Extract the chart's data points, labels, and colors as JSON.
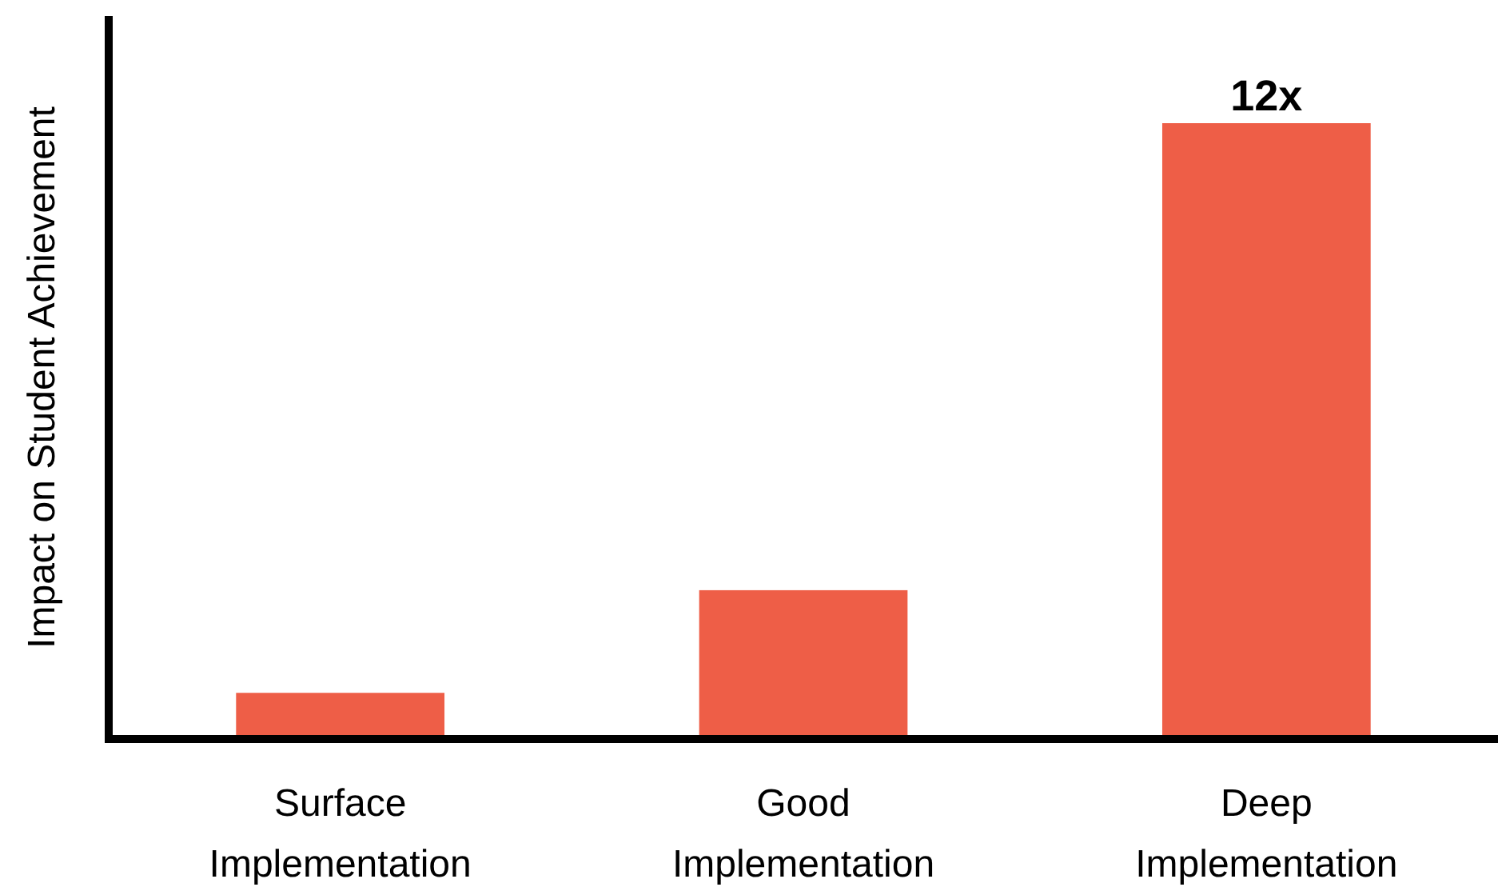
{
  "chart_data": {
    "type": "bar",
    "ylabel": "Impact on Student Achievement",
    "categories": [
      "Surface Implementation",
      "Good Implementation",
      "Deep Implementation"
    ],
    "values": [
      0.9,
      2.9,
      12
    ],
    "color": "#ee5e47",
    "value_labels": [
      null,
      null,
      "12x"
    ]
  }
}
